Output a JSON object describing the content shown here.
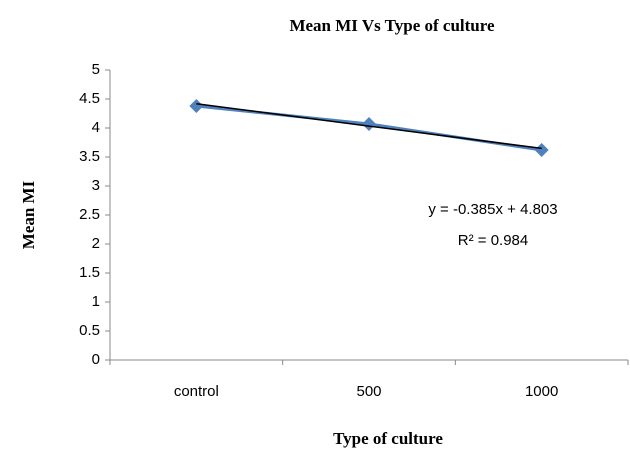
{
  "chart_data": {
    "type": "line",
    "title": "Mean MI Vs Type of culture",
    "xlabel": "Type of culture",
    "ylabel": "Mean MI",
    "categories": [
      "control",
      "500",
      "1000"
    ],
    "series": [
      {
        "name": "Mean MI",
        "color": "#4f81bd",
        "values": [
          4.38,
          4.07,
          3.62
        ]
      }
    ],
    "trendline": {
      "color": "#000000",
      "values": [
        4.418,
        4.033,
        3.648
      ],
      "equation": "y = -0.385x + 4.803",
      "r2": "R² = 0.984"
    },
    "ylim": [
      0,
      5
    ],
    "yticks": [
      0,
      0.5,
      1,
      1.5,
      2,
      2.5,
      3,
      3.5,
      4,
      4.5,
      5
    ],
    "grid": false
  }
}
